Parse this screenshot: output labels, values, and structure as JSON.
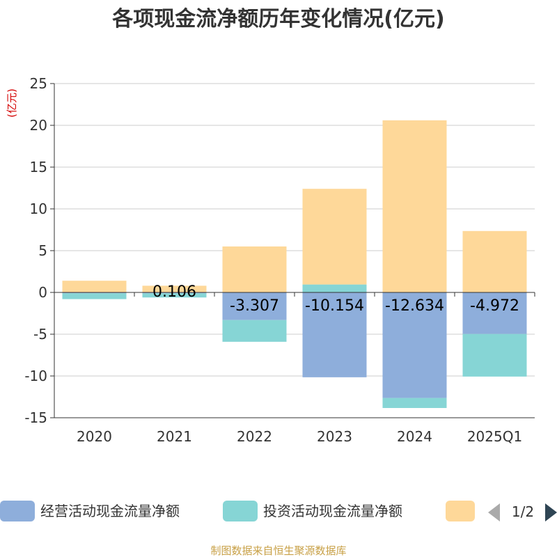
{
  "chart_data": {
    "type": "bar",
    "stacked": true,
    "title": "各项现金流净额历年变化情况(亿元)",
    "unit_label": "(亿元)",
    "categories": [
      "2020",
      "2021",
      "2022",
      "2023",
      "2024",
      "2025Q1"
    ],
    "ylim": [
      -15,
      25
    ],
    "yticks": [
      25,
      20,
      15,
      10,
      5,
      0,
      -5,
      -10,
      -15
    ],
    "grid": true,
    "legend_position": "bottom",
    "series": [
      {
        "name": "经营活动现金流量净额",
        "color": "#8eaedb",
        "values": [
          -0.1,
          -0.106,
          -3.307,
          -10.154,
          -12.634,
          -4.972
        ],
        "labels": [
          "",
          "",
          "-3.307",
          "-10.154",
          "-12.634",
          "-4.972"
        ]
      },
      {
        "name": "投资活动现金流量净额",
        "color": "#86d5d5",
        "values": [
          -0.7,
          -0.5,
          -2.6,
          0.95,
          -1.2,
          -5.1
        ]
      },
      {
        "name": "",
        "color": "#fed899",
        "values": [
          1.4,
          0.8,
          5.5,
          11.45,
          20.6,
          7.35
        ]
      }
    ],
    "partial_label": "0.106"
  },
  "legend": {
    "page": "1/2"
  },
  "source": "制图数据来自恒生聚源数据库"
}
